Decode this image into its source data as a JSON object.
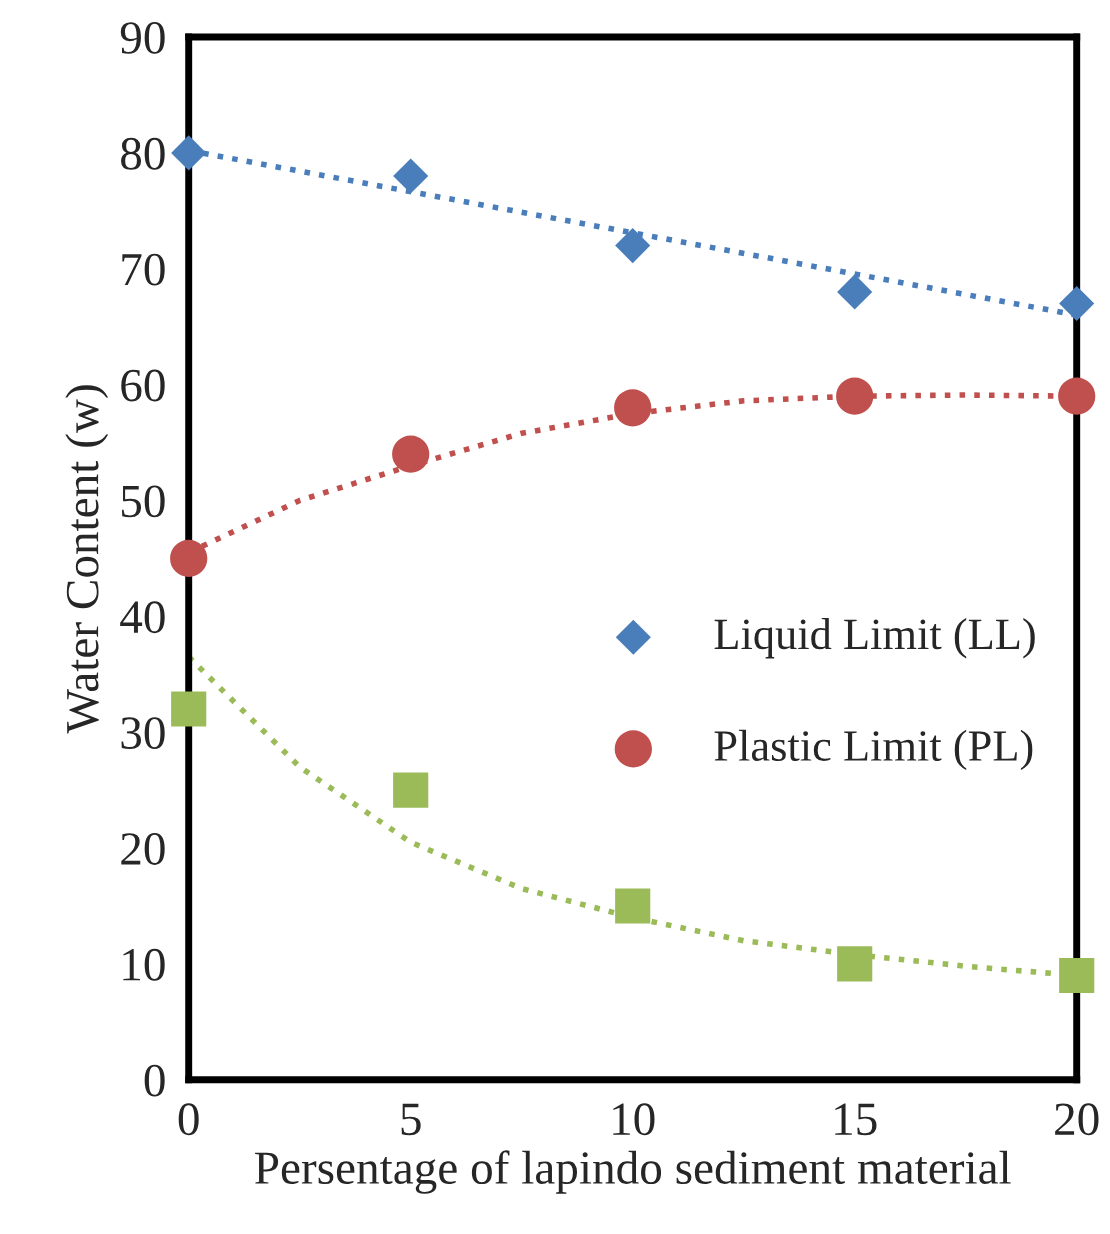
{
  "chart_data": {
    "type": "scatter",
    "xlabel": "Persentage of lapindo sediment material",
    "ylabel": "Water Content (w)",
    "x": [
      0,
      5,
      10,
      15,
      20
    ],
    "series": [
      {
        "name": "Liquid Limit (LL)",
        "color": "#4a7ebb",
        "marker": "diamond",
        "values": [
          80,
          78,
          72,
          68,
          67
        ]
      },
      {
        "name": "Plastic Limit (PL)",
        "color": "#c0504d",
        "marker": "circle",
        "values": [
          45,
          54,
          58,
          59,
          59
        ]
      },
      {
        "color": "#9bbb59",
        "marker": "square",
        "values": [
          32,
          25,
          15,
          10,
          9
        ]
      },
      {
        "type": "line",
        "line_style": "dotted",
        "color": "#4a7ebb",
        "x": [
          0,
          20
        ],
        "values": [
          80.2,
          66
        ]
      },
      {
        "type": "line",
        "line_style": "dotted",
        "color": "#c0504d",
        "x": [
          0,
          2.5,
          5,
          7.5,
          10,
          12.5,
          15,
          17.5,
          20
        ],
        "values": [
          45.5,
          50,
          53,
          55.8,
          57.5,
          58.6,
          59,
          59.1,
          59
        ]
      },
      {
        "type": "line",
        "line_style": "dotted",
        "color": "#9bbb59",
        "x": [
          0,
          2.5,
          5,
          7.5,
          10,
          12.5,
          15,
          17.5,
          20
        ],
        "values": [
          36.5,
          27,
          20.5,
          16.5,
          14,
          12,
          10.8,
          9.8,
          9
        ]
      }
    ],
    "xlim": [
      0,
      20
    ],
    "xticks": [
      0,
      5,
      10,
      15,
      20
    ],
    "ylim": [
      0,
      90
    ],
    "yticks": [
      0,
      10,
      20,
      30,
      40,
      50,
      60,
      70,
      80,
      90
    ],
    "grid": false,
    "legend": "right"
  }
}
